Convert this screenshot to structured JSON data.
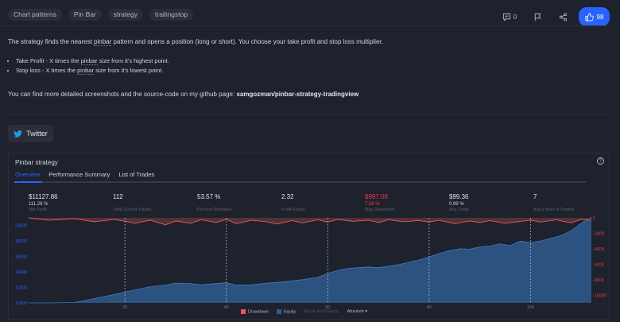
{
  "tags": [
    "Chart patterns",
    "Pin Bar",
    "strategy",
    "trailingstop"
  ],
  "actions": {
    "comments_count": "0",
    "likes_count": "98"
  },
  "description": {
    "intro_pre": "The strategy finds the nearest ",
    "intro_word": "pinbar",
    "intro_post": " pattern and opens a position (long or short). You choose your take profit and stop loss multiplier.",
    "bullets": [
      {
        "pre": "Take Profit - X times the ",
        "word": "pinbar",
        "post": " size from it's highest point."
      },
      {
        "pre": "Stop loss - X times the ",
        "word": "pinbar",
        "post": " size from it's lowest point."
      }
    ],
    "github_pre": "You can find more detailed screenshots and the source-code on my github page: ",
    "github_link": "samgozman/pinbar-strategy-tradingview"
  },
  "twitter_label": "Twitter",
  "panel": {
    "title": "Pinbar strategy",
    "tabs": [
      "Overview",
      "Performance Summary",
      "List of Trades"
    ]
  },
  "stats": [
    {
      "value": "$11127.86",
      "sub": "111.28 %",
      "label": "Net Profit"
    },
    {
      "value": "112",
      "sub": "",
      "label": "Total Closed Trades"
    },
    {
      "value": "53.57 %",
      "sub": "",
      "label": "Percent Profitable"
    },
    {
      "value": "2.32",
      "sub": "",
      "label": "Profit Factor"
    },
    {
      "value": "$997.06",
      "sub": "7.58 %",
      "label": "Max Drawdown"
    },
    {
      "value": "$99.36",
      "sub": "0.99 %",
      "label": "Avg Trade"
    },
    {
      "value": "7",
      "sub": "",
      "label": "Avg # Bars in Trades"
    }
  ],
  "chart_data": {
    "type": "area",
    "x_ticks": [
      20,
      40,
      60,
      80,
      100
    ],
    "x_range": [
      1,
      112
    ],
    "equity_axis": {
      "ticks": [
        10000,
        12000,
        14000,
        16000,
        18000,
        20000
      ],
      "range": [
        10000,
        21000
      ]
    },
    "drawdown_axis": {
      "ticks": [
        0,
        -2000,
        -4000,
        -6000,
        -8000,
        -10000
      ],
      "range": [
        -11000,
        0
      ]
    },
    "series": [
      {
        "name": "Equity",
        "color": "#2f5b8e",
        "x": [
          1,
          5,
          10,
          12,
          15,
          18,
          20,
          22,
          25,
          28,
          30,
          33,
          35,
          38,
          40,
          42,
          45,
          48,
          50,
          53,
          55,
          58,
          60,
          62,
          64,
          66,
          68,
          70,
          72,
          74,
          76,
          78,
          80,
          82,
          84,
          86,
          88,
          90,
          92,
          94,
          96,
          98,
          100,
          102,
          104,
          106,
          108,
          110,
          112
        ],
        "values": [
          10000,
          10000,
          10050,
          10300,
          10700,
          11100,
          11400,
          11700,
          12100,
          12300,
          12550,
          12500,
          12350,
          12500,
          12600,
          12300,
          12350,
          12550,
          12650,
          12850,
          13000,
          13300,
          13800,
          14200,
          14450,
          14550,
          14650,
          14550,
          14750,
          14950,
          15250,
          15550,
          15950,
          16400,
          16750,
          17000,
          16950,
          17250,
          17350,
          17650,
          17400,
          18000,
          17800,
          18000,
          18350,
          18700,
          19300,
          20300,
          21100
        ]
      },
      {
        "name": "Drawdown",
        "color": "#f7525f",
        "x": [
          1,
          5,
          10,
          14,
          18,
          22,
          25,
          28,
          30,
          33,
          35,
          38,
          40,
          42,
          45,
          48,
          50,
          53,
          55,
          58,
          60,
          62,
          65,
          68,
          70,
          72,
          75,
          78,
          80,
          82,
          85,
          88,
          90,
          92,
          95,
          98,
          100,
          102,
          105,
          108,
          110,
          112
        ],
        "values": [
          0,
          -300,
          -100,
          -500,
          -200,
          -700,
          -300,
          -900,
          -400,
          -700,
          -250,
          -600,
          -200,
          -750,
          -300,
          -500,
          -800,
          -350,
          -650,
          -250,
          -550,
          -200,
          -450,
          -300,
          -600,
          -250,
          -500,
          -350,
          -550,
          -300,
          -750,
          -400,
          -600,
          -350,
          -700,
          -450,
          -300,
          -550,
          -250,
          -650,
          -200,
          -300
        ]
      },
      {
        "name": "Buy & Hold Equity",
        "color": "#50535e",
        "visible": false
      }
    ],
    "mode": "Absolute"
  }
}
